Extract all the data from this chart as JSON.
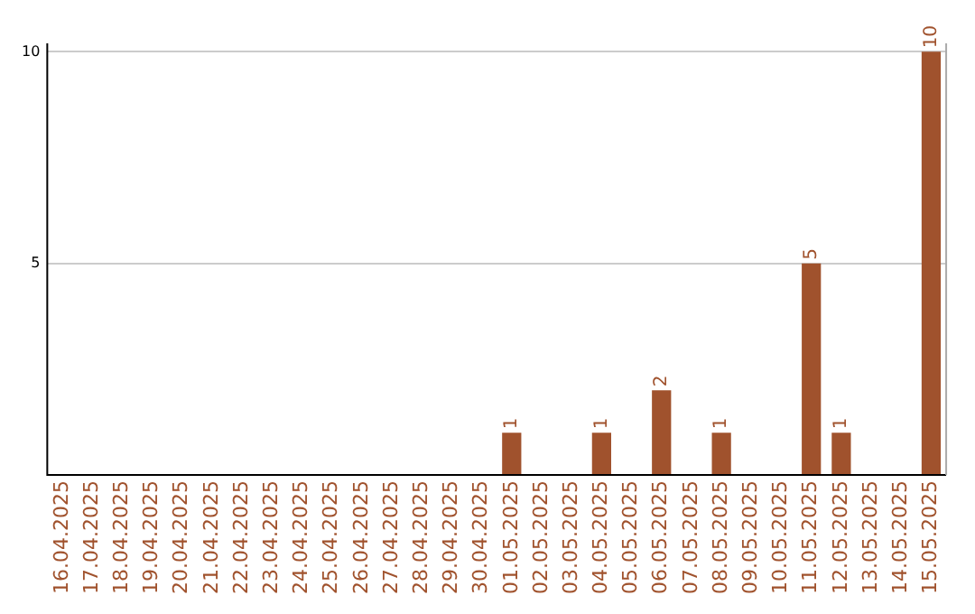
{
  "chart_data": {
    "type": "bar",
    "categories": [
      "16.04.2025",
      "17.04.2025",
      "18.04.2025",
      "19.04.2025",
      "20.04.2025",
      "21.04.2025",
      "22.04.2025",
      "23.04.2025",
      "24.04.2025",
      "25.04.2025",
      "26.04.2025",
      "27.04.2025",
      "28.04.2025",
      "29.04.2025",
      "30.04.2025",
      "01.05.2025",
      "02.05.2025",
      "03.05.2025",
      "04.05.2025",
      "05.05.2025",
      "06.05.2025",
      "07.05.2025",
      "08.05.2025",
      "09.05.2025",
      "10.05.2025",
      "11.05.2025",
      "12.05.2025",
      "13.05.2025",
      "14.05.2025",
      "15.05.2025"
    ],
    "values": [
      0,
      0,
      0,
      0,
      0,
      0,
      0,
      0,
      0,
      0,
      0,
      0,
      0,
      0,
      0,
      1,
      0,
      0,
      1,
      0,
      2,
      0,
      1,
      0,
      0,
      5,
      1,
      0,
      0,
      10
    ],
    "value_labels": [
      null,
      null,
      null,
      null,
      null,
      null,
      null,
      null,
      null,
      null,
      null,
      null,
      null,
      null,
      null,
      "1",
      null,
      null,
      "1",
      null,
      "2",
      null,
      "1",
      null,
      null,
      "5",
      "1",
      null,
      null,
      "10"
    ],
    "color": "#a0522d",
    "ylim": [
      0,
      10.2
    ],
    "yticks": [
      5,
      10
    ],
    "grid": "y"
  }
}
